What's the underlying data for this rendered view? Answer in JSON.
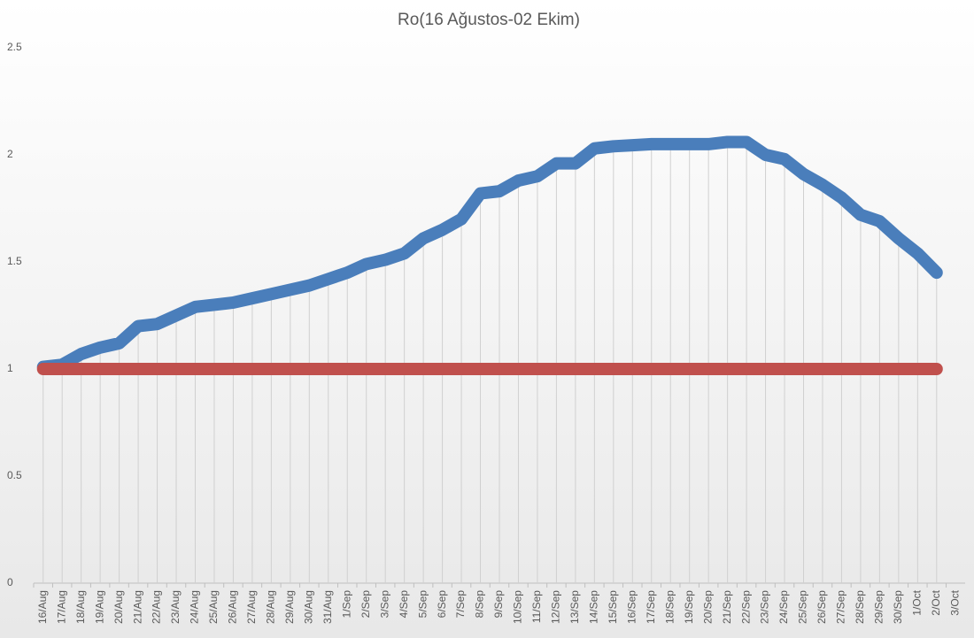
{
  "chart_data": {
    "type": "line",
    "title": "Ro(16 Ağustos-02 Ekim)",
    "categories": [
      "16/Aug",
      "17/Aug",
      "18/Aug",
      "19/Aug",
      "20/Aug",
      "21/Aug",
      "22/Aug",
      "23/Aug",
      "24/Aug",
      "25/Aug",
      "26/Aug",
      "27/Aug",
      "28/Aug",
      "29/Aug",
      "30/Aug",
      "31/Aug",
      "1/Sep",
      "2/Sep",
      "3/Sep",
      "4/Sep",
      "5/Sep",
      "6/Sep",
      "7/Sep",
      "8/Sep",
      "9/Sep",
      "10/Sep",
      "11/Sep",
      "12/Sep",
      "13/Sep",
      "14/Sep",
      "15/Sep",
      "16/Sep",
      "17/Sep",
      "18/Sep",
      "19/Sep",
      "20/Sep",
      "21/Sep",
      "22/Sep",
      "23/Sep",
      "24/Sep",
      "25/Sep",
      "26/Sep",
      "27/Sep",
      "28/Sep",
      "29/Sep",
      "30/Sep",
      "1/Oct",
      "2/Oct",
      "3/Oct"
    ],
    "series": [
      {
        "color": "#4a7ebb",
        "values": [
          1.01,
          1.02,
          1.07,
          1.1,
          1.12,
          1.2,
          1.21,
          1.25,
          1.29,
          1.3,
          1.31,
          1.33,
          1.35,
          1.37,
          1.39,
          1.42,
          1.45,
          1.49,
          1.51,
          1.54,
          1.61,
          1.65,
          1.7,
          1.82,
          1.83,
          1.88,
          1.9,
          1.96,
          1.96,
          2.03,
          2.04,
          2.045,
          2.05,
          2.05,
          2.05,
          2.05,
          2.06,
          2.06,
          2.0,
          1.98,
          1.91,
          1.86,
          1.8,
          1.72,
          1.69,
          1.61,
          1.54,
          1.45,
          null
        ]
      },
      {
        "color": "#c0504d",
        "values": [
          1,
          1,
          1,
          1,
          1,
          1,
          1,
          1,
          1,
          1,
          1,
          1,
          1,
          1,
          1,
          1,
          1,
          1,
          1,
          1,
          1,
          1,
          1,
          1,
          1,
          1,
          1,
          1,
          1,
          1,
          1,
          1,
          1,
          1,
          1,
          1,
          1,
          1,
          1,
          1,
          1,
          1,
          1,
          1,
          1,
          1,
          1,
          1,
          null
        ]
      }
    ],
    "ylim": [
      0,
      2.5
    ],
    "yticks": [
      0,
      0.5,
      1,
      1.5,
      2,
      2.5
    ],
    "drop_lines": true
  }
}
